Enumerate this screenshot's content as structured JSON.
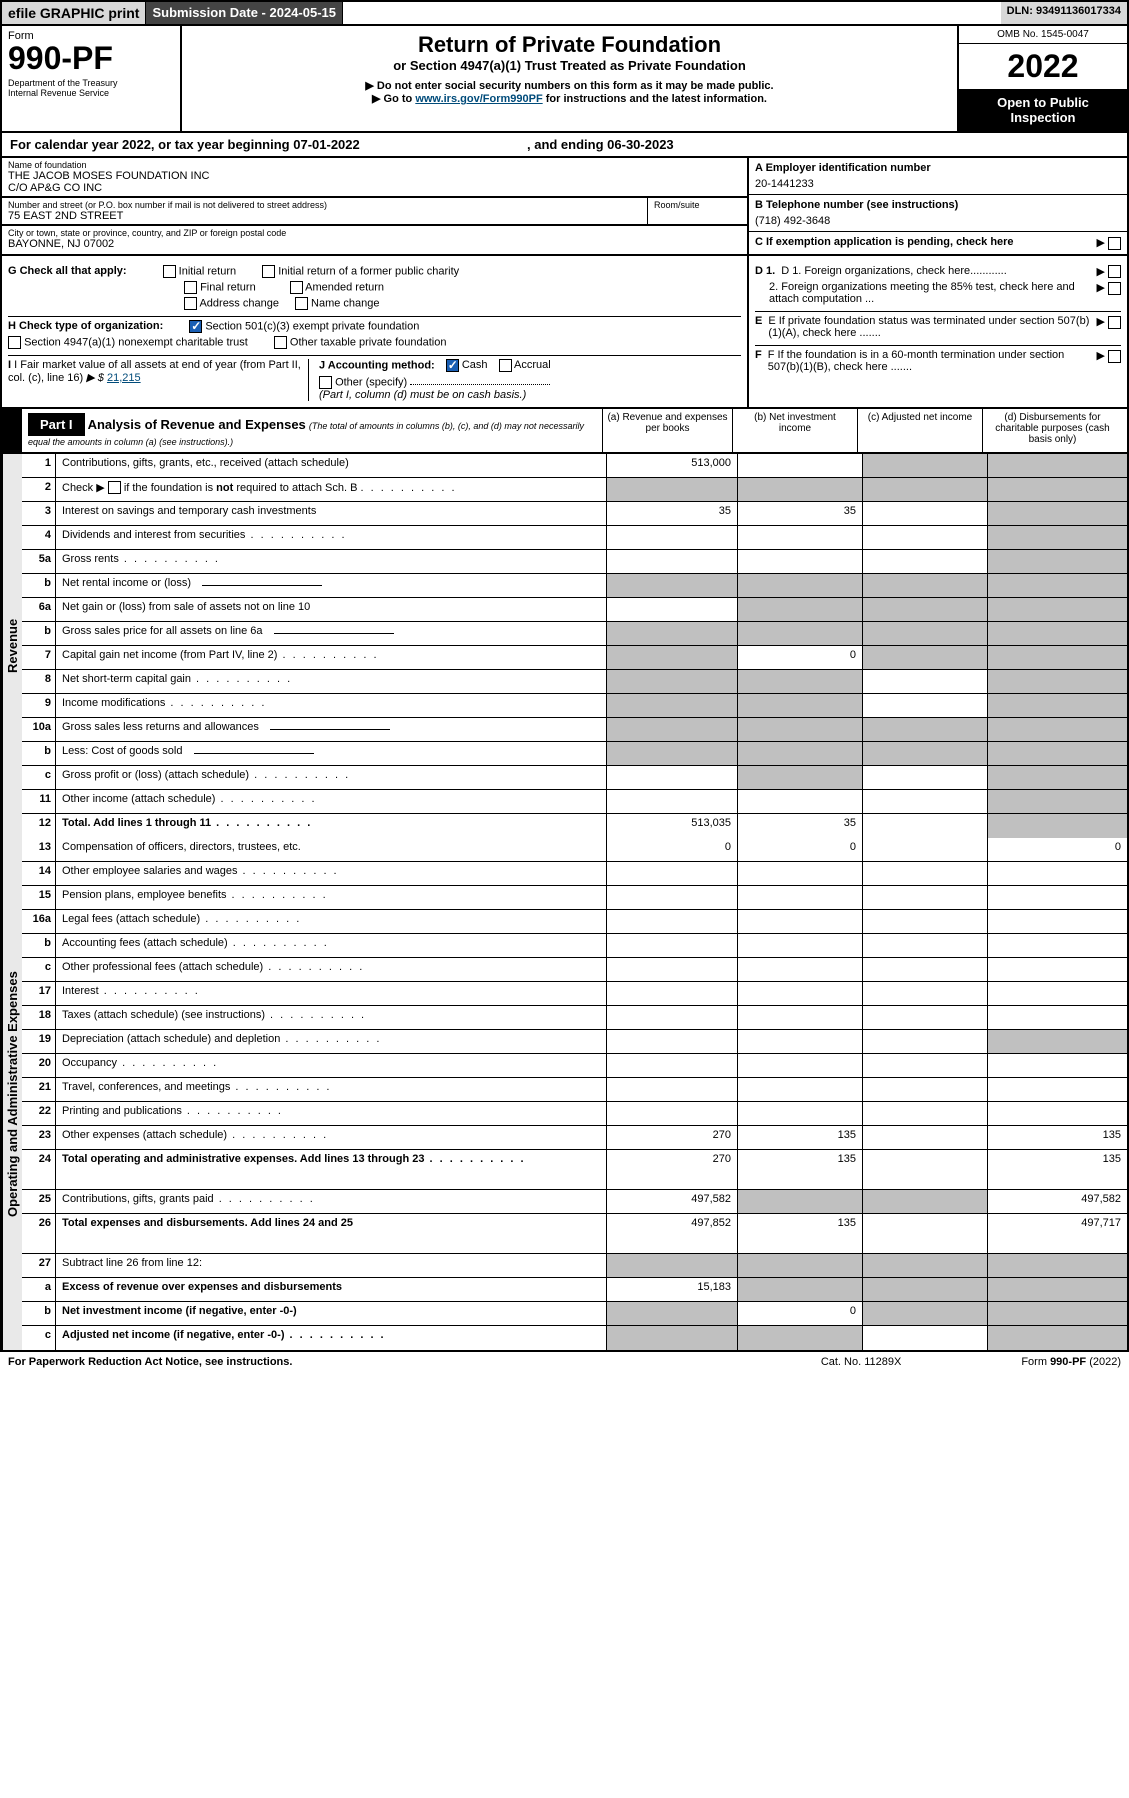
{
  "topbar": {
    "efile": "efile GRAPHIC print",
    "submit": "Submission Date - 2024-05-15",
    "dln": "DLN: 93491136017334"
  },
  "header": {
    "form_label": "Form",
    "form_number": "990-PF",
    "dept": "Department of the Treasury",
    "irs": "Internal Revenue Service",
    "title": "Return of Private Foundation",
    "subtitle": "or Section 4947(a)(1) Trust Treated as Private Foundation",
    "instr1": "▶ Do not enter social security numbers on this form as it may be made public.",
    "instr2_pre": "▶ Go to ",
    "instr2_link": "www.irs.gov/Form990PF",
    "instr2_post": " for instructions and the latest information.",
    "omb": "OMB No. 1545-0047",
    "year": "2022",
    "open": "Open to Public Inspection"
  },
  "calyear": {
    "text_pre": "For calendar year 2022, or tax year beginning ",
    "begin": "07-01-2022",
    "mid": " , and ending ",
    "end": "06-30-2023"
  },
  "foundation": {
    "name_lbl": "Name of foundation",
    "name1": "THE JACOB MOSES FOUNDATION INC",
    "name2": "C/O AP&G CO INC",
    "addr_lbl": "Number and street (or P.O. box number if mail is not delivered to street address)",
    "addr": "75 EAST 2ND STREET",
    "room_lbl": "Room/suite",
    "city_lbl": "City or town, state or province, country, and ZIP or foreign postal code",
    "city": "BAYONNE, NJ  07002",
    "ein_lbl": "A Employer identification number",
    "ein": "20-1441233",
    "phone_lbl": "B Telephone number (see instructions)",
    "phone": "(718) 492-3648",
    "c_lbl": "C If exemption application is pending, check here"
  },
  "checks": {
    "g_lbl": "G Check all that apply:",
    "g_items": [
      "Initial return",
      "Initial return of a former public charity",
      "Final return",
      "Amended return",
      "Address change",
      "Name change"
    ],
    "h_lbl": "H Check type of organization:",
    "h1": "Section 501(c)(3) exempt private foundation",
    "h2": "Section 4947(a)(1) nonexempt charitable trust",
    "h3": "Other taxable private foundation",
    "i_lbl": "I Fair market value of all assets at end of year (from Part II, col. (c), line 16)",
    "i_val": "21,215",
    "j_lbl": "J Accounting method:",
    "j1": "Cash",
    "j2": "Accrual",
    "j3": "Other (specify)",
    "j_note": "(Part I, column (d) must be on cash basis.)",
    "d1": "D 1. Foreign organizations, check here............",
    "d2": "2. Foreign organizations meeting the 85% test, check here and attach computation ...",
    "e": "E If private foundation status was terminated under section 507(b)(1)(A), check here .......",
    "f": "F If the foundation is in a 60-month termination under section 507(b)(1)(B), check here ......."
  },
  "part1": {
    "label": "Part I",
    "title": "Analysis of Revenue and Expenses",
    "note": "(The total of amounts in columns (b), (c), and (d) may not necessarily equal the amounts in column (a) (see instructions).)",
    "col_a": "(a)  Revenue and expenses per books",
    "col_b": "(b)  Net investment income",
    "col_c": "(c)  Adjusted net income",
    "col_d": "(d)  Disbursements for charitable purposes (cash basis only)"
  },
  "sections": {
    "revenue": "Revenue",
    "expenses": "Operating and Administrative Expenses"
  },
  "rows": [
    {
      "n": "1",
      "d": "Contributions, gifts, grants, etc., received (attach schedule)",
      "a": "513,000",
      "b": "",
      "c": "",
      "cg": true,
      "dd": "",
      "dg": true,
      "sec": "r"
    },
    {
      "n": "2",
      "d": "Check ▶ ☐ if the foundation is not required to attach Sch. B",
      "dots": true,
      "a": "",
      "ag": true,
      "b": "",
      "bg": true,
      "c": "",
      "cg": true,
      "dd": "",
      "dg": true,
      "sec": "r",
      "bold_not": true
    },
    {
      "n": "3",
      "d": "Interest on savings and temporary cash investments",
      "a": "35",
      "b": "35",
      "c": "",
      "dd": "",
      "dg": true,
      "sec": "r"
    },
    {
      "n": "4",
      "d": "Dividends and interest from securities",
      "dots": true,
      "a": "",
      "b": "",
      "c": "",
      "dd": "",
      "dg": true,
      "sec": "r"
    },
    {
      "n": "5a",
      "d": "Gross rents",
      "dots": true,
      "a": "",
      "b": "",
      "c": "",
      "dd": "",
      "dg": true,
      "sec": "r"
    },
    {
      "n": "b",
      "d": "Net rental income or (loss)",
      "a": "",
      "ag": true,
      "b": "",
      "bg": true,
      "c": "",
      "cg": true,
      "dd": "",
      "dg": true,
      "sec": "r",
      "subline": true
    },
    {
      "n": "6a",
      "d": "Net gain or (loss) from sale of assets not on line 10",
      "a": "",
      "b": "",
      "bg": true,
      "c": "",
      "cg": true,
      "dd": "",
      "dg": true,
      "sec": "r"
    },
    {
      "n": "b",
      "d": "Gross sales price for all assets on line 6a",
      "a": "",
      "ag": true,
      "b": "",
      "bg": true,
      "c": "",
      "cg": true,
      "dd": "",
      "dg": true,
      "sec": "r",
      "subline": true
    },
    {
      "n": "7",
      "d": "Capital gain net income (from Part IV, line 2)",
      "dots": true,
      "a": "",
      "ag": true,
      "b": "0",
      "c": "",
      "cg": true,
      "dd": "",
      "dg": true,
      "sec": "r"
    },
    {
      "n": "8",
      "d": "Net short-term capital gain",
      "dots": true,
      "a": "",
      "ag": true,
      "b": "",
      "bg": true,
      "c": "",
      "dd": "",
      "dg": true,
      "sec": "r"
    },
    {
      "n": "9",
      "d": "Income modifications",
      "dots": true,
      "a": "",
      "ag": true,
      "b": "",
      "bg": true,
      "c": "",
      "dd": "",
      "dg": true,
      "sec": "r"
    },
    {
      "n": "10a",
      "d": "Gross sales less returns and allowances",
      "a": "",
      "ag": true,
      "b": "",
      "bg": true,
      "c": "",
      "cg": true,
      "dd": "",
      "dg": true,
      "sec": "r",
      "subline": true
    },
    {
      "n": "b",
      "d": "Less: Cost of goods sold",
      "dots": true,
      "a": "",
      "ag": true,
      "b": "",
      "bg": true,
      "c": "",
      "cg": true,
      "dd": "",
      "dg": true,
      "sec": "r",
      "subline": true
    },
    {
      "n": "c",
      "d": "Gross profit or (loss) (attach schedule)",
      "dots": true,
      "a": "",
      "b": "",
      "bg": true,
      "c": "",
      "dd": "",
      "dg": true,
      "sec": "r"
    },
    {
      "n": "11",
      "d": "Other income (attach schedule)",
      "dots": true,
      "a": "",
      "b": "",
      "c": "",
      "dd": "",
      "dg": true,
      "sec": "r"
    },
    {
      "n": "12",
      "d": "Total. Add lines 1 through 11",
      "dots": true,
      "bold": true,
      "a": "513,035",
      "b": "35",
      "c": "",
      "dd": "",
      "dg": true,
      "sec": "r"
    },
    {
      "n": "13",
      "d": "Compensation of officers, directors, trustees, etc.",
      "a": "0",
      "b": "0",
      "c": "",
      "dd": "0",
      "sec": "e"
    },
    {
      "n": "14",
      "d": "Other employee salaries and wages",
      "dots": true,
      "a": "",
      "b": "",
      "c": "",
      "dd": "",
      "sec": "e"
    },
    {
      "n": "15",
      "d": "Pension plans, employee benefits",
      "dots": true,
      "a": "",
      "b": "",
      "c": "",
      "dd": "",
      "sec": "e"
    },
    {
      "n": "16a",
      "d": "Legal fees (attach schedule)",
      "dots": true,
      "a": "",
      "b": "",
      "c": "",
      "dd": "",
      "sec": "e"
    },
    {
      "n": "b",
      "d": "Accounting fees (attach schedule)",
      "dots": true,
      "a": "",
      "b": "",
      "c": "",
      "dd": "",
      "sec": "e"
    },
    {
      "n": "c",
      "d": "Other professional fees (attach schedule)",
      "dots": true,
      "a": "",
      "b": "",
      "c": "",
      "dd": "",
      "sec": "e"
    },
    {
      "n": "17",
      "d": "Interest",
      "dots": true,
      "a": "",
      "b": "",
      "c": "",
      "dd": "",
      "sec": "e"
    },
    {
      "n": "18",
      "d": "Taxes (attach schedule) (see instructions)",
      "dots": true,
      "a": "",
      "b": "",
      "c": "",
      "dd": "",
      "sec": "e"
    },
    {
      "n": "19",
      "d": "Depreciation (attach schedule) and depletion",
      "dots": true,
      "a": "",
      "b": "",
      "c": "",
      "dd": "",
      "dg": true,
      "sec": "e"
    },
    {
      "n": "20",
      "d": "Occupancy",
      "dots": true,
      "a": "",
      "b": "",
      "c": "",
      "dd": "",
      "sec": "e"
    },
    {
      "n": "21",
      "d": "Travel, conferences, and meetings",
      "dots": true,
      "a": "",
      "b": "",
      "c": "",
      "dd": "",
      "sec": "e"
    },
    {
      "n": "22",
      "d": "Printing and publications",
      "dots": true,
      "a": "",
      "b": "",
      "c": "",
      "dd": "",
      "sec": "e"
    },
    {
      "n": "23",
      "d": "Other expenses (attach schedule)",
      "dots": true,
      "a": "270",
      "b": "135",
      "c": "",
      "dd": "135",
      "sec": "e"
    },
    {
      "n": "24",
      "d": "Total operating and administrative expenses. Add lines 13 through 23",
      "dots": true,
      "bold": true,
      "a": "270",
      "b": "135",
      "c": "",
      "dd": "135",
      "sec": "e",
      "tall": true
    },
    {
      "n": "25",
      "d": "Contributions, gifts, grants paid",
      "dots": true,
      "a": "497,582",
      "b": "",
      "bg": true,
      "c": "",
      "cg": true,
      "dd": "497,582",
      "sec": "e"
    },
    {
      "n": "26",
      "d": "Total expenses and disbursements. Add lines 24 and 25",
      "bold": true,
      "a": "497,852",
      "b": "135",
      "c": "",
      "dd": "497,717",
      "sec": "e",
      "tall": true
    },
    {
      "n": "27",
      "d": "Subtract line 26 from line 12:",
      "a": "",
      "ag": true,
      "b": "",
      "bg": true,
      "c": "",
      "cg": true,
      "dd": "",
      "dg": true,
      "sec": "e"
    },
    {
      "n": "a",
      "d": "Excess of revenue over expenses and disbursements",
      "bold": true,
      "a": "15,183",
      "b": "",
      "bg": true,
      "c": "",
      "cg": true,
      "dd": "",
      "dg": true,
      "sec": "e"
    },
    {
      "n": "b",
      "d": "Net investment income (if negative, enter -0-)",
      "bold": true,
      "a": "",
      "ag": true,
      "b": "0",
      "c": "",
      "cg": true,
      "dd": "",
      "dg": true,
      "sec": "e"
    },
    {
      "n": "c",
      "d": "Adjusted net income (if negative, enter -0-)",
      "bold": true,
      "dots": true,
      "a": "",
      "ag": true,
      "b": "",
      "bg": true,
      "c": "",
      "dd": "",
      "dg": true,
      "sec": "e"
    }
  ],
  "footer": {
    "left": "For Paperwork Reduction Act Notice, see instructions.",
    "mid": "Cat. No. 11289X",
    "right": "Form 990-PF (2022)"
  }
}
